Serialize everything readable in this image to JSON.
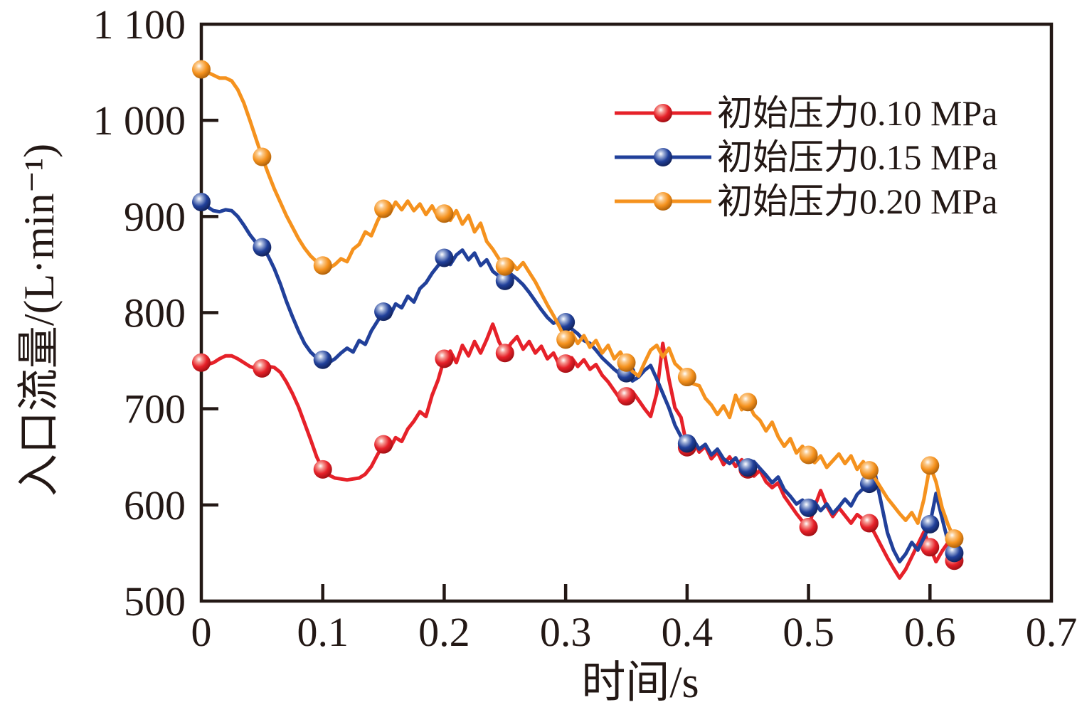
{
  "chart_data": {
    "type": "line",
    "title": "",
    "xlabel": "时间/s",
    "ylabel": "入口流量/(L·min⁻¹)",
    "xlim": [
      0,
      0.7
    ],
    "ylim": [
      500,
      1100
    ],
    "x_ticks": [
      0,
      0.1,
      0.2,
      0.3,
      0.4,
      0.5,
      0.6,
      0.7
    ],
    "x_tick_labels": [
      "0",
      "0.1",
      "0.2",
      "0.3",
      "0.4",
      "0.5",
      "0.6",
      "0.7"
    ],
    "y_ticks": [
      500,
      600,
      700,
      800,
      900,
      1000,
      1100
    ],
    "y_tick_labels": [
      "500",
      "600",
      "700",
      "800",
      "900",
      "1 000",
      "1 100"
    ],
    "grid": false,
    "legend_position": "inside-upper-right",
    "frame_color": "#231815",
    "background_color": "#ffffff",
    "series": [
      {
        "name": "初始压力0.10 MPa",
        "color": "#e62129",
        "color_dark": "#9b0d12",
        "color_light": "#f59a93",
        "t0": 0,
        "dt": 0.005,
        "values": [
          748,
          746,
          748,
          752,
          755,
          755,
          752,
          748,
          744,
          742,
          742,
          744,
          743,
          738,
          728,
          716,
          702,
          685,
          668,
          650,
          637,
          631,
          628,
          627,
          626,
          627,
          628,
          632,
          640,
          652,
          663,
          658,
          670,
          666,
          679,
          687,
          697,
          692,
          714,
          730,
          752,
          760,
          748,
          766,
          755,
          770,
          758,
          772,
          788,
          770,
          758,
          768,
          775,
          762,
          770,
          758,
          765,
          752,
          758,
          745,
          747,
          753,
          744,
          751,
          741,
          746,
          735,
          728,
          719,
          710,
          713,
          718,
          709,
          700,
          692,
          716,
          768,
          731,
          701,
          691,
          660,
          668,
          655,
          661,
          648,
          655,
          642,
          650,
          640,
          647,
          637,
          630,
          636,
          624,
          618,
          623,
          609,
          600,
          591,
          583,
          577,
          598,
          615,
          599,
          588,
          597,
          589,
          581,
          590,
          585,
          581,
          569,
          557,
          545,
          534,
          524,
          533,
          546,
          559,
          572,
          556,
          541,
          552,
          561,
          542
        ],
        "marker_points": [
          [
            0,
            748
          ],
          [
            0.05,
            742
          ],
          [
            0.1,
            637
          ],
          [
            0.15,
            663
          ],
          [
            0.2,
            752
          ],
          [
            0.25,
            758
          ],
          [
            0.3,
            747
          ],
          [
            0.35,
            713
          ],
          [
            0.4,
            660
          ],
          [
            0.45,
            637
          ],
          [
            0.5,
            577
          ],
          [
            0.55,
            581
          ],
          [
            0.6,
            556
          ],
          [
            0.62,
            542
          ]
        ]
      },
      {
        "name": "初始压力0.15 MPa",
        "color": "#21409a",
        "color_dark": "#101f54",
        "color_light": "#9fb0d8",
        "t0": 0,
        "dt": 0.005,
        "values": [
          915,
          910,
          906,
          905,
          907,
          906,
          900,
          891,
          881,
          873,
          868,
          859,
          846,
          830,
          812,
          796,
          781,
          768,
          759,
          753,
          751,
          748,
          752,
          758,
          763,
          759,
          771,
          767,
          781,
          791,
          801,
          796,
          809,
          805,
          817,
          811,
          825,
          831,
          841,
          849,
          857,
          850,
          860,
          865,
          855,
          862,
          849,
          855,
          843,
          838,
          833,
          840,
          835,
          829,
          821,
          812,
          803,
          795,
          789,
          792,
          790,
          783,
          778,
          771,
          768,
          761,
          753,
          747,
          741,
          736,
          737,
          729,
          733,
          740,
          745,
          731,
          716,
          701,
          683,
          671,
          664,
          668,
          658,
          663,
          652,
          658,
          648,
          643,
          649,
          637,
          639,
          645,
          638,
          631,
          623,
          629,
          616,
          609,
          601,
          605,
          597,
          603,
          594,
          601,
          591,
          598,
          606,
          599,
          611,
          617,
          622,
          631,
          601,
          571,
          553,
          541,
          549,
          561,
          553,
          566,
          580,
          612,
          586,
          561,
          550
        ],
        "marker_points": [
          [
            0,
            915
          ],
          [
            0.05,
            868
          ],
          [
            0.1,
            751
          ],
          [
            0.15,
            801
          ],
          [
            0.2,
            857
          ],
          [
            0.25,
            833
          ],
          [
            0.3,
            790
          ],
          [
            0.35,
            737
          ],
          [
            0.4,
            664
          ],
          [
            0.45,
            639
          ],
          [
            0.5,
            597
          ],
          [
            0.55,
            622
          ],
          [
            0.6,
            580
          ],
          [
            0.62,
            550
          ]
        ]
      },
      {
        "name": "初始压力0.20 MPa",
        "color": "#f5921e",
        "color_dark": "#a85c08",
        "color_light": "#fbc98a",
        "t0": 0,
        "dt": 0.005,
        "values": [
          1053,
          1050,
          1047,
          1044,
          1044,
          1041,
          1032,
          1018,
          1000,
          981,
          962,
          945,
          929,
          915,
          901,
          889,
          877,
          867,
          859,
          853,
          849,
          846,
          850,
          856,
          853,
          866,
          871,
          884,
          880,
          895,
          908,
          903,
          915,
          907,
          916,
          906,
          913,
          902,
          911,
          899,
          903,
          896,
          906,
          892,
          901,
          884,
          893,
          874,
          866,
          856,
          848,
          853,
          845,
          852,
          842,
          832,
          820,
          808,
          797,
          785,
          772,
          779,
          768,
          776,
          764,
          771,
          758,
          766,
          752,
          759,
          748,
          739,
          734,
          748,
          761,
          766,
          754,
          763,
          747,
          741,
          733,
          726,
          724,
          711,
          704,
          694,
          703,
          691,
          714,
          699,
          707,
          694,
          688,
          677,
          686,
          671,
          661,
          669,
          654,
          661,
          652,
          644,
          651,
          639,
          646,
          653,
          643,
          651,
          637,
          645,
          636,
          627,
          617,
          607,
          599,
          591,
          584,
          592,
          581,
          606,
          641,
          624,
          597,
          579,
          565
        ],
        "marker_points": [
          [
            0,
            1053
          ],
          [
            0.05,
            962
          ],
          [
            0.1,
            849
          ],
          [
            0.15,
            908
          ],
          [
            0.2,
            903
          ],
          [
            0.25,
            848
          ],
          [
            0.3,
            772
          ],
          [
            0.35,
            748
          ],
          [
            0.4,
            733
          ],
          [
            0.45,
            707
          ],
          [
            0.5,
            652
          ],
          [
            0.55,
            636
          ],
          [
            0.6,
            641
          ],
          [
            0.62,
            565
          ]
        ]
      }
    ]
  }
}
